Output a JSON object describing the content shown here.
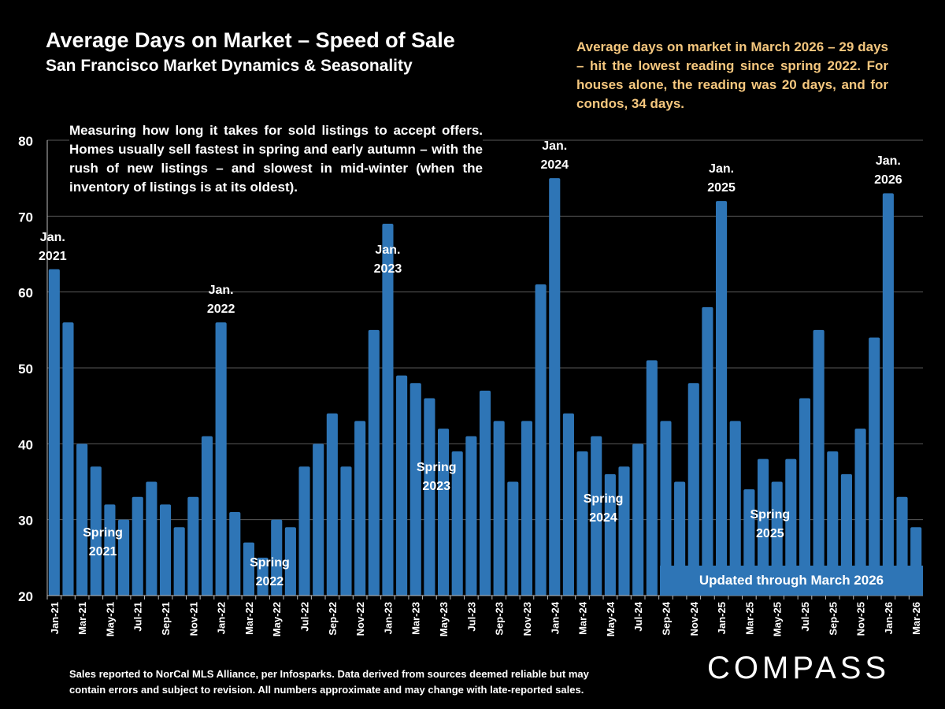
{
  "header": {
    "title": "Average Days on Market – Speed of Sale",
    "subtitle": "San Francisco Market Dynamics & Seasonality"
  },
  "callout": "Average days on market in March 2026 – 29 days –  hit the lowest reading since spring 2022. For houses alone, the reading was 20 days, and for condos, 34 days.",
  "description": "Measuring how long it takes for sold listings to accept offers. Homes usually sell fastest in spring and early autumn – with the rush of new listings – and slowest in mid-winter (when the inventory of listings is at its oldest).",
  "footnote_line1": "Sales reported to NorCal MLS Alliance, per Infosparks. Data derived from sources deemed reliable but may",
  "footnote_line2": "contain errors and subject to revision. All numbers approximate and may change with late-reported sales.",
  "logo": "COMPASS",
  "updated_label": "Updated through March 2026",
  "colors": {
    "bar": "#2e75b6",
    "callout": "#f5c77e",
    "background": "#000000",
    "grid": "#595959"
  },
  "chart_data": {
    "type": "bar",
    "title": "Average Days on Market – Speed of Sale",
    "xlabel": "",
    "ylabel": "",
    "ylim": [
      20,
      80
    ],
    "yticks": [
      20,
      30,
      40,
      50,
      60,
      70,
      80
    ],
    "grid": true,
    "categories": [
      "Jan-21",
      "Feb-21",
      "Mar-21",
      "Apr-21",
      "May-21",
      "Jun-21",
      "Jul-21",
      "Aug-21",
      "Sep-21",
      "Oct-21",
      "Nov-21",
      "Dec-21",
      "Jan-22",
      "Feb-22",
      "Mar-22",
      "Apr-22",
      "May-22",
      "Jun-22",
      "Jul-22",
      "Aug-22",
      "Sep-22",
      "Oct-22",
      "Nov-22",
      "Dec-22",
      "Jan-23",
      "Feb-23",
      "Mar-23",
      "Apr-23",
      "May-23",
      "Jun-23",
      "Jul-23",
      "Aug-23",
      "Sep-23",
      "Oct-23",
      "Nov-23",
      "Dec-23",
      "Jan-24",
      "Feb-24",
      "Mar-24",
      "Apr-24",
      "May-24",
      "Jun-24",
      "Jul-24",
      "Aug-24",
      "Sep-24",
      "Oct-24",
      "Nov-24",
      "Dec-24",
      "Jan-25",
      "Feb-25",
      "Mar-25",
      "Apr-25",
      "May-25",
      "Jun-25",
      "Jul-25",
      "Aug-25",
      "Sep-25",
      "Oct-25",
      "Nov-25",
      "Dec-25",
      "Jan-26",
      "Feb-26",
      "Mar-26"
    ],
    "values": [
      63,
      56,
      40,
      37,
      32,
      30,
      33,
      35,
      32,
      29,
      33,
      41,
      56,
      31,
      27,
      25,
      30,
      29,
      37,
      40,
      44,
      37,
      43,
      55,
      69,
      49,
      48,
      46,
      42,
      39,
      41,
      47,
      43,
      35,
      43,
      61,
      75,
      44,
      39,
      41,
      36,
      37,
      40,
      51,
      43,
      35,
      48,
      58,
      72,
      43,
      34,
      38,
      35,
      38,
      46,
      55,
      39,
      36,
      42,
      54,
      73,
      33,
      29
    ],
    "annotations": [
      {
        "line1": "Jan.",
        "line2": "2021",
        "month": "Jan-21"
      },
      {
        "line1": "Jan.",
        "line2": "2022",
        "month": "Jan-22"
      },
      {
        "line1": "Jan.",
        "line2": "2023",
        "month": "Jan-23"
      },
      {
        "line1": "Jan.",
        "line2": "2024",
        "month": "Jan-24"
      },
      {
        "line1": "Jan.",
        "line2": "2025",
        "month": "Jan-25"
      },
      {
        "line1": "Jan.",
        "line2": "2026",
        "month": "Jan-26"
      },
      {
        "line1": "Spring",
        "line2": "2021",
        "month": "Apr-21"
      },
      {
        "line1": "Spring",
        "line2": "2022",
        "month": "Apr-22"
      },
      {
        "line1": "Spring",
        "line2": "2023",
        "month": "Apr-23"
      },
      {
        "line1": "Spring",
        "line2": "2024",
        "month": "Apr-24"
      },
      {
        "line1": "Spring",
        "line2": "2025",
        "month": "Apr-25"
      }
    ]
  }
}
